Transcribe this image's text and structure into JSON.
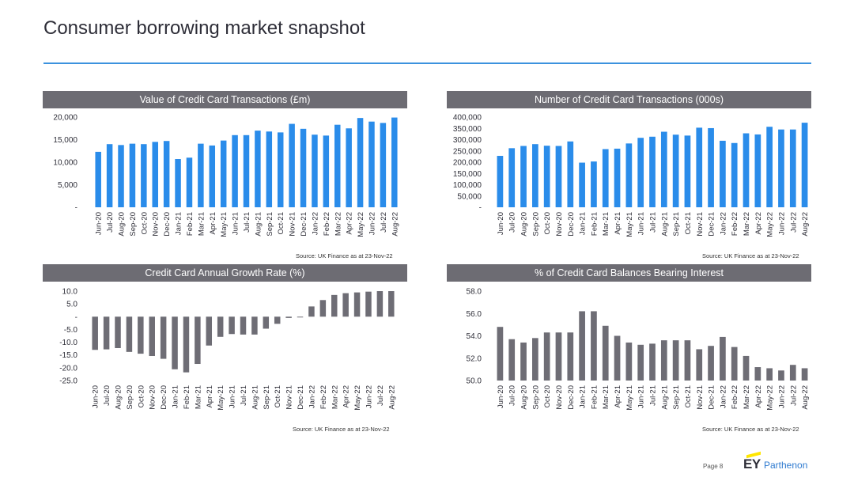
{
  "page": {
    "title": "Consumer borrowing market snapshot",
    "page_number": "Page 8",
    "logo_mark": "EY",
    "logo_brand": "Parthenon"
  },
  "colors": {
    "bar_blue": "#2a8cea",
    "bar_grey": "#6e6d75",
    "header_grey": "#6d6c73",
    "rule_blue": "#3b92de"
  },
  "chart_data": [
    {
      "type": "bar",
      "title": "Value of Credit Card Transactions (£m)",
      "categories": [
        "Jun-20",
        "Jul-20",
        "Aug-20",
        "Sep-20",
        "Oct-20",
        "Nov-20",
        "Dec-20",
        "Jan-21",
        "Feb-21",
        "Mar-21",
        "Apr-21",
        "May-21",
        "Jun-21",
        "Jul-21",
        "Aug-21",
        "Sep-21",
        "Oct-21",
        "Nov-21",
        "Dec-21",
        "Jan-22",
        "Feb-22",
        "Mar-22",
        "Apr-22",
        "May-22",
        "Jun-22",
        "Jul-22",
        "Aug-22"
      ],
      "values": [
        12300,
        14000,
        13800,
        14100,
        14000,
        14500,
        14700,
        10700,
        11000,
        14100,
        13700,
        14800,
        16000,
        16000,
        17000,
        16800,
        16600,
        18500,
        17400,
        16100,
        15900,
        18300,
        17500,
        19800,
        19000,
        18700,
        19900
      ],
      "ylim": [
        0,
        20000
      ],
      "ticks": [
        0,
        5000,
        10000,
        15000,
        20000
      ],
      "tick_labels": [
        "-",
        "5,000",
        "10,000",
        "15,000",
        "20,000"
      ],
      "xlabel": "",
      "ylabel": "",
      "source": "Source: UK Finance as at 23-Nov-22"
    },
    {
      "type": "bar",
      "title": "Number of Credit Card Transactions (000s)",
      "categories": [
        "Jun-20",
        "Jul-20",
        "Aug-20",
        "Sep-20",
        "Oct-20",
        "Nov-20",
        "Dec-20",
        "Jan-21",
        "Feb-21",
        "Mar-21",
        "Apr-21",
        "May-21",
        "Jun-21",
        "Jul-21",
        "Aug-21",
        "Sep-21",
        "Oct-21",
        "Nov-21",
        "Dec-21",
        "Jan-22",
        "Feb-22",
        "Mar-22",
        "Apr-22",
        "May-22",
        "Jun-22",
        "Jul-22",
        "Aug-22"
      ],
      "values": [
        228000,
        262000,
        272000,
        280000,
        273000,
        272000,
        292000,
        198000,
        203000,
        258000,
        260000,
        283000,
        308000,
        313000,
        335000,
        322000,
        318000,
        353000,
        351000,
        295000,
        285000,
        328000,
        323000,
        357000,
        345000,
        345000,
        375000
      ],
      "ylim": [
        0,
        400000
      ],
      "ticks": [
        0,
        50000,
        100000,
        150000,
        200000,
        250000,
        300000,
        350000,
        400000
      ],
      "tick_labels": [
        "-",
        "50,000",
        "100,000",
        "150,000",
        "200,000",
        "250,000",
        "300,000",
        "350,000",
        "400,000"
      ],
      "xlabel": "",
      "ylabel": "",
      "source": "Source: UK Finance as at 23-Nov-22"
    },
    {
      "type": "bar",
      "title": "Credit Card Annual Growth Rate (%)",
      "categories": [
        "Jun-20",
        "Jul-20",
        "Aug-20",
        "Sep-20",
        "Oct-20",
        "Nov-20",
        "Dec-20",
        "Jan-21",
        "Feb-21",
        "Mar-21",
        "Apr-21",
        "May-21",
        "Jun-21",
        "Jul-21",
        "Aug-21",
        "Sep-21",
        "Oct-21",
        "Nov-21",
        "Dec-21",
        "Jan-22",
        "Feb-22",
        "Mar-22",
        "Apr-22",
        "May-22",
        "Jun-22",
        "Jul-22",
        "Aug-22"
      ],
      "values": [
        -13.0,
        -12.8,
        -12.3,
        -13.8,
        -14.5,
        -15.4,
        -16.5,
        -20.6,
        -21.8,
        -18.5,
        -11.3,
        -7.9,
        -6.8,
        -7.0,
        -7.0,
        -4.7,
        -2.8,
        -0.5,
        -0.3,
        4.0,
        6.5,
        8.5,
        9.2,
        9.5,
        9.8,
        10.0,
        10.0
      ],
      "ylim": [
        -25,
        10
      ],
      "ticks": [
        -25,
        -20,
        -15,
        -10,
        -5,
        0,
        5,
        10
      ],
      "tick_labels": [
        "-25.0",
        "-20.0",
        "-15.0",
        "-10.0",
        "-5.0",
        "-",
        "5.0",
        "10.0"
      ],
      "xlabel": "",
      "ylabel": "",
      "source": "Source: UK Finance as at 23-Nov-22"
    },
    {
      "type": "bar",
      "title": "% of Credit Card Balances Bearing Interest",
      "categories": [
        "Jun-20",
        "Jul-20",
        "Aug-20",
        "Sep-20",
        "Oct-20",
        "Nov-20",
        "Dec-20",
        "Jan-21",
        "Feb-21",
        "Mar-21",
        "Apr-21",
        "May-21",
        "Jun-21",
        "Jul-21",
        "Aug-21",
        "Sep-21",
        "Oct-21",
        "Nov-21",
        "Dec-21",
        "Jan-22",
        "Feb-22",
        "Mar-22",
        "Apr-22",
        "May-22",
        "Jun-22",
        "Jul-22",
        "Aug-22"
      ],
      "values": [
        54.8,
        53.7,
        53.4,
        53.8,
        54.3,
        54.3,
        54.3,
        56.2,
        56.2,
        54.9,
        54.0,
        53.4,
        53.2,
        53.3,
        53.6,
        53.6,
        53.6,
        52.8,
        53.1,
        53.9,
        53.0,
        52.2,
        51.2,
        51.1,
        50.9,
        51.4,
        51.1
      ],
      "ylim": [
        50,
        58
      ],
      "ticks": [
        50,
        52,
        54,
        56,
        58
      ],
      "tick_labels": [
        "50.0",
        "52.0",
        "54.0",
        "56.0",
        "58.0"
      ],
      "xlabel": "",
      "ylabel": "",
      "source": "Source: UK Finance as at 23-Nov-22"
    }
  ]
}
